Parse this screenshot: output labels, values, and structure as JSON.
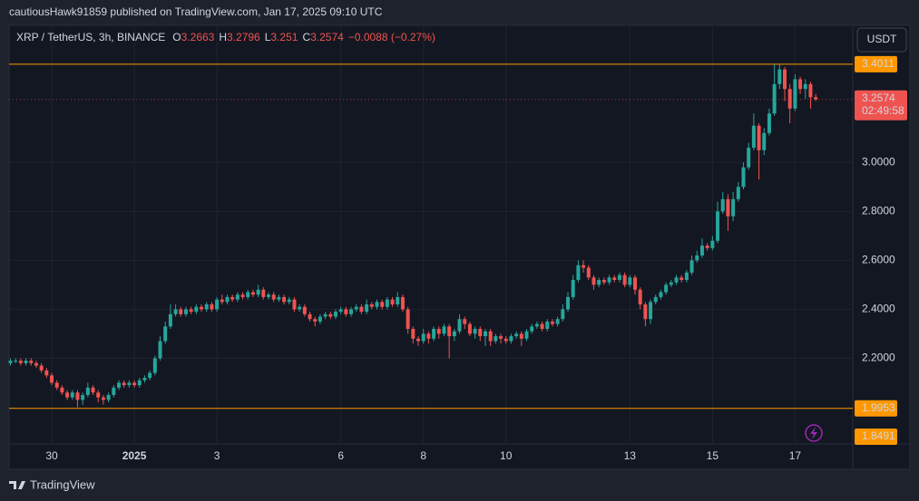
{
  "header": {
    "publisher_line": "cautiousHawk91859 published on TradingView.com, Jan 17, 2025 09:10 UTC"
  },
  "chart_data": {
    "type": "candlestick",
    "title": "XRP / TetherUS, 3h, BINANCE",
    "ohlc_prefixes": [
      "O",
      "H",
      "L",
      "C"
    ],
    "change_label": "−0.0088 (−0.27%)",
    "currency": "USDT",
    "categories": [
      null,
      null,
      null,
      null,
      null,
      null,
      null,
      null,
      "30",
      null,
      null,
      null,
      null,
      null,
      null,
      null,
      null,
      null,
      null,
      null,
      null,
      null,
      null,
      null,
      "2025",
      null,
      null,
      null,
      null,
      null,
      null,
      null,
      null,
      null,
      null,
      null,
      null,
      null,
      null,
      null,
      "3",
      null,
      null,
      null,
      null,
      null,
      null,
      null,
      null,
      null,
      null,
      null,
      null,
      null,
      null,
      null,
      null,
      null,
      null,
      null,
      null,
      null,
      null,
      null,
      "6",
      null,
      null,
      null,
      null,
      null,
      null,
      null,
      null,
      null,
      null,
      null,
      null,
      null,
      null,
      null,
      "8",
      null,
      null,
      null,
      null,
      null,
      null,
      null,
      null,
      null,
      null,
      null,
      null,
      null,
      null,
      null,
      "10",
      null,
      null,
      null,
      null,
      null,
      null,
      null,
      null,
      null,
      null,
      null,
      null,
      null,
      null,
      null,
      null,
      null,
      null,
      null,
      null,
      null,
      null,
      null,
      "13",
      null,
      null,
      null,
      null,
      null,
      null,
      null,
      null,
      null,
      null,
      null,
      null,
      null,
      null,
      null,
      "15",
      null,
      null,
      null,
      null,
      null,
      null,
      null,
      null,
      null,
      null,
      null,
      null,
      null,
      null,
      null,
      "17",
      null,
      null,
      null,
      null
    ],
    "open": [
      2.18,
      2.19,
      2.19,
      2.18,
      2.19,
      2.18,
      2.17,
      2.15,
      2.13,
      2.1,
      2.08,
      2.06,
      2.04,
      2.06,
      2.03,
      2.05,
      2.08,
      2.06,
      2.04,
      2.03,
      2.05,
      2.08,
      2.1,
      2.09,
      2.1,
      2.09,
      2.11,
      2.12,
      2.14,
      2.2,
      2.27,
      2.33,
      2.38,
      2.4,
      2.38,
      2.4,
      2.39,
      2.41,
      2.4,
      2.42,
      2.4,
      2.44,
      2.43,
      2.45,
      2.44,
      2.46,
      2.45,
      2.47,
      2.46,
      2.48,
      2.45,
      2.46,
      2.44,
      2.45,
      2.43,
      2.44,
      2.4,
      2.41,
      2.38,
      2.36,
      2.35,
      2.37,
      2.38,
      2.37,
      2.39,
      2.4,
      2.38,
      2.4,
      2.41,
      2.39,
      2.42,
      2.41,
      2.43,
      2.41,
      2.44,
      2.42,
      2.45,
      2.4,
      2.32,
      2.28,
      2.27,
      2.3,
      2.28,
      2.32,
      2.3,
      2.33,
      2.29,
      2.31,
      2.36,
      2.34,
      2.3,
      2.32,
      2.29,
      2.31,
      2.27,
      2.29,
      2.28,
      2.27,
      2.29,
      2.3,
      2.28,
      2.31,
      2.33,
      2.34,
      2.32,
      2.35,
      2.34,
      2.36,
      2.4,
      2.45,
      2.52,
      2.58,
      2.57,
      2.53,
      2.5,
      2.52,
      2.51,
      2.53,
      2.52,
      2.54,
      2.5,
      2.53,
      2.48,
      2.42,
      2.36,
      2.43,
      2.45,
      2.47,
      2.5,
      2.51,
      2.53,
      2.52,
      2.55,
      2.6,
      2.62,
      2.66,
      2.65,
      2.68,
      2.8,
      2.85,
      2.78,
      2.85,
      2.9,
      2.98,
      3.06,
      3.15,
      3.05,
      3.12,
      3.2,
      3.32,
      3.38,
      3.3,
      3.22,
      3.34,
      3.3,
      3.32,
      3.2663
    ],
    "high": [
      2.2,
      2.2,
      2.2,
      2.2,
      2.2,
      2.19,
      2.18,
      2.16,
      2.14,
      2.11,
      2.09,
      2.07,
      2.07,
      2.07,
      2.06,
      2.1,
      2.09,
      2.07,
      2.05,
      2.06,
      2.09,
      2.11,
      2.11,
      2.11,
      2.11,
      2.12,
      2.13,
      2.15,
      2.21,
      2.29,
      2.35,
      2.42,
      2.42,
      2.41,
      2.41,
      2.41,
      2.42,
      2.42,
      2.43,
      2.43,
      2.45,
      2.46,
      2.46,
      2.46,
      2.47,
      2.47,
      2.48,
      2.48,
      2.5,
      2.49,
      2.47,
      2.47,
      2.46,
      2.46,
      2.45,
      2.45,
      2.42,
      2.42,
      2.39,
      2.37,
      2.38,
      2.39,
      2.39,
      2.4,
      2.41,
      2.41,
      2.41,
      2.42,
      2.42,
      2.44,
      2.43,
      2.44,
      2.44,
      2.45,
      2.45,
      2.47,
      2.46,
      2.41,
      2.33,
      2.29,
      2.32,
      2.31,
      2.33,
      2.33,
      2.34,
      2.34,
      2.32,
      2.38,
      2.37,
      2.35,
      2.33,
      2.33,
      2.32,
      2.32,
      2.3,
      2.3,
      2.29,
      2.3,
      2.31,
      2.31,
      2.32,
      2.34,
      2.35,
      2.35,
      2.36,
      2.36,
      2.37,
      2.42,
      2.47,
      2.54,
      2.6,
      2.6,
      2.58,
      2.54,
      2.53,
      2.53,
      2.54,
      2.54,
      2.55,
      2.55,
      2.54,
      2.54,
      2.49,
      2.43,
      2.44,
      2.46,
      2.48,
      2.51,
      2.52,
      2.54,
      2.54,
      2.56,
      2.62,
      2.64,
      2.69,
      2.67,
      2.7,
      2.84,
      2.88,
      2.87,
      2.88,
      2.92,
      3.0,
      3.08,
      3.2,
      3.16,
      3.14,
      3.22,
      3.4,
      3.4,
      3.39,
      3.32,
      3.36,
      3.35,
      3.34,
      3.33,
      3.2796
    ],
    "low": [
      2.17,
      2.18,
      2.17,
      2.17,
      2.17,
      2.16,
      2.14,
      2.12,
      2.09,
      2.07,
      2.05,
      2.03,
      2.03,
      2.0,
      2.01,
      2.04,
      2.05,
      2.02,
      2.01,
      2.02,
      2.04,
      2.07,
      2.08,
      2.08,
      2.08,
      2.08,
      2.1,
      2.11,
      2.13,
      2.19,
      2.26,
      2.32,
      2.37,
      2.37,
      2.37,
      2.38,
      2.38,
      2.39,
      2.39,
      2.39,
      2.39,
      2.42,
      2.42,
      2.43,
      2.43,
      2.44,
      2.44,
      2.45,
      2.45,
      2.44,
      2.44,
      2.43,
      2.43,
      2.42,
      2.42,
      2.39,
      2.39,
      2.37,
      2.35,
      2.33,
      2.34,
      2.36,
      2.36,
      2.36,
      2.38,
      2.37,
      2.37,
      2.39,
      2.38,
      2.38,
      2.4,
      2.4,
      2.4,
      2.4,
      2.41,
      2.41,
      2.39,
      2.3,
      2.26,
      2.25,
      2.26,
      2.26,
      2.27,
      2.28,
      2.29,
      2.2,
      2.27,
      2.3,
      2.32,
      2.29,
      2.28,
      2.27,
      2.25,
      2.25,
      2.26,
      2.26,
      2.26,
      2.26,
      2.28,
      2.25,
      2.27,
      2.3,
      2.32,
      2.31,
      2.31,
      2.33,
      2.33,
      2.35,
      2.39,
      2.44,
      2.51,
      2.55,
      2.52,
      2.48,
      2.49,
      2.5,
      2.5,
      2.51,
      2.51,
      2.49,
      2.49,
      2.46,
      2.4,
      2.33,
      2.34,
      2.42,
      2.44,
      2.46,
      2.49,
      2.5,
      2.51,
      2.51,
      2.54,
      2.59,
      2.61,
      2.64,
      2.64,
      2.67,
      2.79,
      2.72,
      2.76,
      2.84,
      2.89,
      2.97,
      3.05,
      2.93,
      3.03,
      3.11,
      3.19,
      3.3,
      3.25,
      3.16,
      3.21,
      3.28,
      3.26,
      3.22,
      3.251
    ],
    "close": [
      2.19,
      2.19,
      2.18,
      2.19,
      2.18,
      2.17,
      2.15,
      2.13,
      2.1,
      2.08,
      2.06,
      2.04,
      2.06,
      2.03,
      2.05,
      2.08,
      2.06,
      2.04,
      2.03,
      2.05,
      2.08,
      2.1,
      2.09,
      2.1,
      2.09,
      2.11,
      2.12,
      2.14,
      2.2,
      2.27,
      2.33,
      2.38,
      2.4,
      2.38,
      2.4,
      2.39,
      2.41,
      2.4,
      2.42,
      2.4,
      2.44,
      2.43,
      2.45,
      2.44,
      2.46,
      2.45,
      2.47,
      2.46,
      2.48,
      2.45,
      2.46,
      2.44,
      2.45,
      2.43,
      2.44,
      2.4,
      2.41,
      2.38,
      2.36,
      2.35,
      2.37,
      2.38,
      2.37,
      2.39,
      2.4,
      2.38,
      2.4,
      2.41,
      2.39,
      2.42,
      2.41,
      2.43,
      2.41,
      2.44,
      2.42,
      2.45,
      2.4,
      2.32,
      2.28,
      2.27,
      2.3,
      2.28,
      2.32,
      2.3,
      2.33,
      2.29,
      2.31,
      2.36,
      2.34,
      2.3,
      2.32,
      2.29,
      2.31,
      2.27,
      2.29,
      2.28,
      2.27,
      2.29,
      2.3,
      2.28,
      2.31,
      2.33,
      2.34,
      2.32,
      2.35,
      2.34,
      2.36,
      2.4,
      2.45,
      2.52,
      2.58,
      2.57,
      2.53,
      2.5,
      2.52,
      2.51,
      2.53,
      2.52,
      2.54,
      2.5,
      2.53,
      2.48,
      2.42,
      2.36,
      2.43,
      2.45,
      2.47,
      2.5,
      2.51,
      2.53,
      2.52,
      2.55,
      2.6,
      2.62,
      2.66,
      2.65,
      2.68,
      2.8,
      2.85,
      2.78,
      2.85,
      2.9,
      2.98,
      3.06,
      3.15,
      3.05,
      3.12,
      3.2,
      3.32,
      3.38,
      3.3,
      3.22,
      3.34,
      3.3,
      3.32,
      3.2663,
      3.2574
    ],
    "ylim": [
      1.85,
      3.56
    ],
    "yticks": [
      {
        "value": 2.2,
        "label": "2.2000"
      },
      {
        "value": 2.4,
        "label": "2.4000"
      },
      {
        "value": 2.6,
        "label": "2.6000"
      },
      {
        "value": 2.8,
        "label": "2.8000"
      },
      {
        "value": 3.0,
        "label": "3.0000"
      }
    ],
    "grid": true,
    "colors": {
      "up": "#26a69a",
      "down": "#ef5350"
    },
    "price_lines": [
      {
        "value": 3.4011,
        "color": "#ff9800"
      },
      {
        "value": 1.9953,
        "color": "#ff9800"
      }
    ],
    "low_marker": {
      "value": 1.8491,
      "color": "#ff9800"
    },
    "countdown": "02:49:58"
  },
  "footer": {
    "brand": "TradingView"
  }
}
